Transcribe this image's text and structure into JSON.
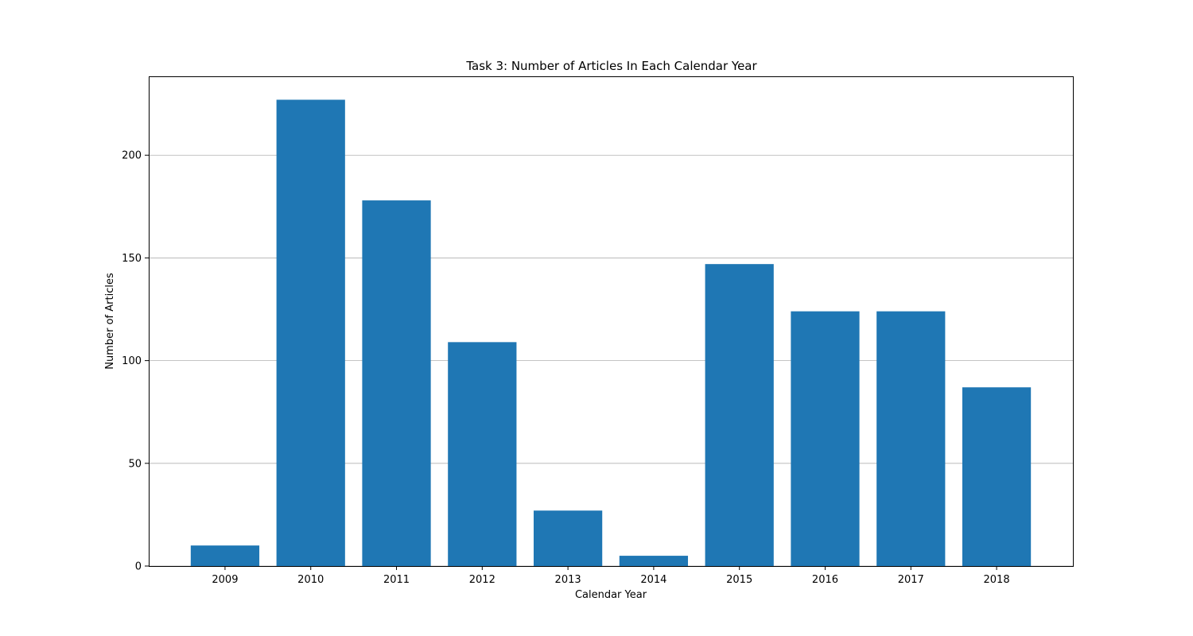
{
  "chart_data": {
    "type": "bar",
    "title": "Task 3: Number of Articles In Each Calendar Year",
    "xlabel": "Calendar Year",
    "ylabel": "Number of Articles",
    "categories": [
      "2009",
      "2010",
      "2011",
      "2012",
      "2013",
      "2014",
      "2015",
      "2016",
      "2017",
      "2018"
    ],
    "values": [
      10,
      227,
      178,
      109,
      27,
      5,
      147,
      124,
      124,
      87
    ],
    "ylim": [
      0,
      238.4
    ],
    "yticks": [
      0,
      50,
      100,
      150,
      200
    ],
    "grid": "y-axis",
    "bar_color": "#1f77b4",
    "grid_color": "#b0b0b0"
  }
}
